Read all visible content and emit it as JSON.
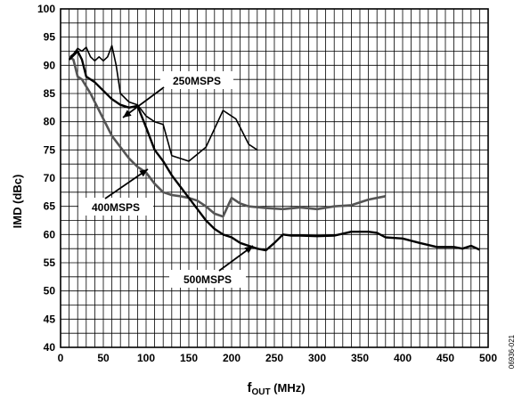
{
  "chart_data": {
    "type": "line",
    "xlabel": {
      "main": "f",
      "sub": "OUT",
      "unit": " (MHz)"
    },
    "ylabel": "IMD (dBc)",
    "xlim": [
      0,
      500
    ],
    "ylim": [
      40,
      100
    ],
    "x_ticks": [
      0,
      50,
      100,
      150,
      200,
      250,
      300,
      350,
      400,
      450,
      500
    ],
    "y_ticks": [
      40,
      45,
      50,
      55,
      60,
      65,
      70,
      75,
      80,
      85,
      90,
      95,
      100
    ],
    "x_minor_step": 10,
    "y_minor_step": 2.5,
    "grid": true,
    "figure_id": "06936-021",
    "series": [
      {
        "name": "250MSPS",
        "color": "#000000",
        "points": [
          [
            11,
            91.5
          ],
          [
            15,
            92
          ],
          [
            20,
            93
          ],
          [
            25,
            92.5
          ],
          [
            30,
            93.2
          ],
          [
            35,
            91.5
          ],
          [
            40,
            90.8
          ],
          [
            45,
            91.5
          ],
          [
            50,
            90.8
          ],
          [
            55,
            91.5
          ],
          [
            60,
            93.5
          ],
          [
            65,
            90
          ],
          [
            70,
            85
          ],
          [
            80,
            83.5
          ],
          [
            90,
            83
          ],
          [
            100,
            81
          ],
          [
            110,
            80
          ],
          [
            120,
            79.5
          ],
          [
            130,
            74
          ],
          [
            150,
            73
          ],
          [
            170,
            75.5
          ],
          [
            190,
            82
          ],
          [
            205,
            80.5
          ],
          [
            220,
            76
          ],
          [
            230,
            75
          ]
        ]
      },
      {
        "name": "400MSPS",
        "color": "#555555",
        "points": [
          [
            10,
            91.5
          ],
          [
            15,
            91
          ],
          [
            20,
            88
          ],
          [
            25,
            87.5
          ],
          [
            35,
            85
          ],
          [
            50,
            80.5
          ],
          [
            60,
            77.5
          ],
          [
            70,
            75.5
          ],
          [
            80,
            73.5
          ],
          [
            90,
            72
          ],
          [
            100,
            71
          ],
          [
            110,
            69
          ],
          [
            120,
            67.5
          ],
          [
            130,
            67
          ],
          [
            140,
            66.8
          ],
          [
            150,
            66.5
          ],
          [
            160,
            66
          ],
          [
            170,
            65
          ],
          [
            180,
            63.7
          ],
          [
            190,
            63.2
          ],
          [
            200,
            66.5
          ],
          [
            210,
            65.5
          ],
          [
            220,
            65
          ],
          [
            240,
            64.7
          ],
          [
            260,
            64.5
          ],
          [
            280,
            64.8
          ],
          [
            300,
            64.5
          ],
          [
            320,
            65
          ],
          [
            340,
            65.2
          ],
          [
            360,
            66.2
          ],
          [
            370,
            66.5
          ],
          [
            380,
            66.8
          ]
        ]
      },
      {
        "name": "500MSPS",
        "color": "#000000",
        "points": [
          [
            10,
            91
          ],
          [
            20,
            92.5
          ],
          [
            25,
            91
          ],
          [
            30,
            88
          ],
          [
            40,
            87
          ],
          [
            50,
            85.5
          ],
          [
            60,
            84
          ],
          [
            70,
            83
          ],
          [
            80,
            82.5
          ],
          [
            90,
            82.8
          ],
          [
            100,
            79
          ],
          [
            110,
            75
          ],
          [
            120,
            73
          ],
          [
            130,
            70.5
          ],
          [
            140,
            68.5
          ],
          [
            150,
            66.5
          ],
          [
            160,
            64.5
          ],
          [
            170,
            62.5
          ],
          [
            180,
            61
          ],
          [
            190,
            60
          ],
          [
            200,
            59.5
          ],
          [
            210,
            58.5
          ],
          [
            220,
            58
          ],
          [
            230,
            57.5
          ],
          [
            240,
            57.2
          ],
          [
            250,
            58.5
          ],
          [
            260,
            60
          ],
          [
            270,
            59.8
          ],
          [
            280,
            59.8
          ],
          [
            300,
            59.7
          ],
          [
            320,
            59.8
          ],
          [
            340,
            60.5
          ],
          [
            360,
            60.5
          ],
          [
            370,
            60.3
          ],
          [
            380,
            59.5
          ],
          [
            400,
            59.3
          ],
          [
            420,
            58.5
          ],
          [
            440,
            57.8
          ],
          [
            460,
            57.8
          ],
          [
            470,
            57.5
          ],
          [
            480,
            58
          ],
          [
            490,
            57.3
          ]
        ]
      }
    ],
    "annotations": [
      {
        "text": "250MSPS",
        "series": 0
      },
      {
        "text": "400MSPS",
        "series": 1
      },
      {
        "text": "500MSPS",
        "series": 2
      }
    ]
  }
}
